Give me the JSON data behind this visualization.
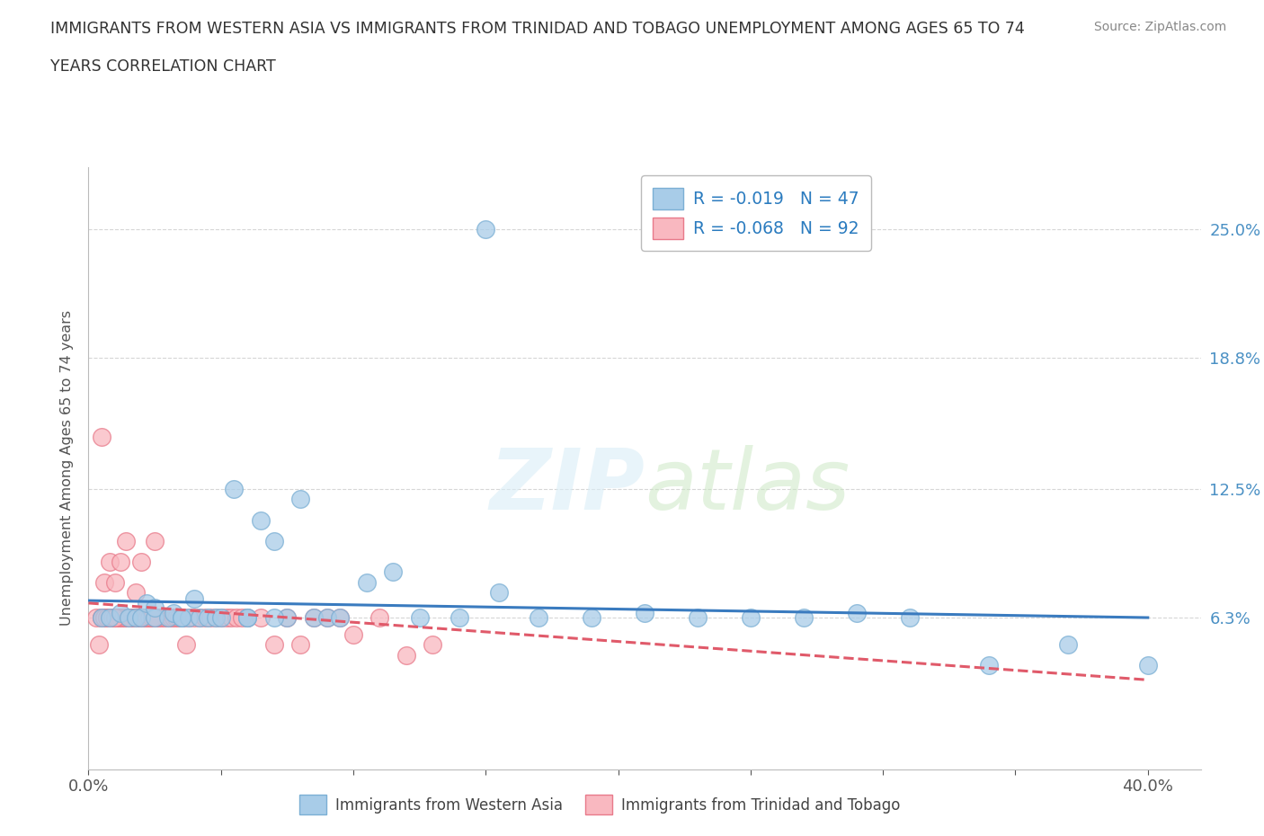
{
  "title_line1": "IMMIGRANTS FROM WESTERN ASIA VS IMMIGRANTS FROM TRINIDAD AND TOBAGO UNEMPLOYMENT AMONG AGES 65 TO 74",
  "title_line2": "YEARS CORRELATION CHART",
  "source": "Source: ZipAtlas.com",
  "ylabel": "Unemployment Among Ages 65 to 74 years",
  "xlim": [
    0.0,
    0.42
  ],
  "ylim": [
    -0.01,
    0.28
  ],
  "ytick_positions": [
    0.063,
    0.125,
    0.188,
    0.25
  ],
  "ytick_labels": [
    "6.3%",
    "12.5%",
    "18.8%",
    "25.0%"
  ],
  "grid_color": "#cccccc",
  "background_color": "#ffffff",
  "watermark_text": "ZIPatlas",
  "legend_r1": "R = -0.019",
  "legend_n1": "N = 47",
  "legend_r2": "R = -0.068",
  "legend_n2": "N = 92",
  "series1_color": "#a8cce8",
  "series1_edge": "#7bafd4",
  "series2_color": "#f9b8c0",
  "series2_edge": "#e87a8a",
  "trendline1_color": "#3a7bbf",
  "trendline2_color": "#e05a6a",
  "trendline1_style": "-",
  "trendline2_style": "--",
  "legend_label1": "Immigrants from Western Asia",
  "legend_label2": "Immigrants from Trinidad and Tobago",
  "wa_x": [
    0.005,
    0.008,
    0.012,
    0.015,
    0.018,
    0.02,
    0.022,
    0.025,
    0.025,
    0.03,
    0.032,
    0.035,
    0.038,
    0.04,
    0.042,
    0.045,
    0.048,
    0.05,
    0.055,
    0.06,
    0.065,
    0.07,
    0.075,
    0.08,
    0.085,
    0.09,
    0.095,
    0.105,
    0.115,
    0.125,
    0.14,
    0.155,
    0.17,
    0.19,
    0.21,
    0.23,
    0.25,
    0.27,
    0.29,
    0.31,
    0.34,
    0.37,
    0.4,
    0.15,
    0.07,
    0.06,
    0.035
  ],
  "wa_y": [
    0.063,
    0.063,
    0.065,
    0.063,
    0.063,
    0.063,
    0.07,
    0.063,
    0.068,
    0.063,
    0.065,
    0.063,
    0.063,
    0.072,
    0.063,
    0.063,
    0.063,
    0.063,
    0.125,
    0.063,
    0.11,
    0.1,
    0.063,
    0.12,
    0.063,
    0.063,
    0.063,
    0.08,
    0.085,
    0.063,
    0.063,
    0.075,
    0.063,
    0.063,
    0.065,
    0.063,
    0.063,
    0.063,
    0.065,
    0.063,
    0.04,
    0.05,
    0.04,
    0.25,
    0.063,
    0.063,
    0.063
  ],
  "tt_x": [
    0.003,
    0.004,
    0.005,
    0.005,
    0.006,
    0.006,
    0.007,
    0.007,
    0.008,
    0.008,
    0.009,
    0.01,
    0.01,
    0.011,
    0.012,
    0.012,
    0.013,
    0.014,
    0.014,
    0.015,
    0.015,
    0.016,
    0.017,
    0.018,
    0.018,
    0.019,
    0.02,
    0.02,
    0.021,
    0.022,
    0.023,
    0.024,
    0.025,
    0.025,
    0.026,
    0.027,
    0.028,
    0.029,
    0.03,
    0.031,
    0.032,
    0.033,
    0.034,
    0.035,
    0.036,
    0.037,
    0.038,
    0.04,
    0.042,
    0.044,
    0.046,
    0.048,
    0.05,
    0.052,
    0.054,
    0.056,
    0.058,
    0.06,
    0.065,
    0.07,
    0.075,
    0.08,
    0.085,
    0.09,
    0.095,
    0.1,
    0.11,
    0.12,
    0.13,
    0.005,
    0.006,
    0.007,
    0.008,
    0.009,
    0.01,
    0.011,
    0.012,
    0.013,
    0.014,
    0.015,
    0.016,
    0.017,
    0.018,
    0.019,
    0.02,
    0.021,
    0.022,
    0.023,
    0.024,
    0.025,
    0.01,
    0.015
  ],
  "tt_y": [
    0.063,
    0.05,
    0.063,
    0.063,
    0.063,
    0.08,
    0.063,
    0.063,
    0.063,
    0.09,
    0.063,
    0.063,
    0.08,
    0.063,
    0.063,
    0.09,
    0.063,
    0.063,
    0.1,
    0.063,
    0.063,
    0.063,
    0.063,
    0.063,
    0.075,
    0.063,
    0.063,
    0.09,
    0.063,
    0.063,
    0.063,
    0.063,
    0.063,
    0.1,
    0.063,
    0.063,
    0.063,
    0.063,
    0.063,
    0.063,
    0.063,
    0.063,
    0.063,
    0.063,
    0.063,
    0.05,
    0.063,
    0.063,
    0.063,
    0.063,
    0.063,
    0.063,
    0.063,
    0.063,
    0.063,
    0.063,
    0.063,
    0.063,
    0.063,
    0.05,
    0.063,
    0.05,
    0.063,
    0.063,
    0.063,
    0.055,
    0.063,
    0.045,
    0.05,
    0.15,
    0.063,
    0.063,
    0.063,
    0.063,
    0.063,
    0.063,
    0.063,
    0.063,
    0.063,
    0.063,
    0.063,
    0.063,
    0.063,
    0.063,
    0.063,
    0.063,
    0.063,
    0.063,
    0.063,
    0.063,
    0.063,
    0.063
  ],
  "trendline1_x0": 0.0,
  "trendline1_x1": 0.4,
  "trendline1_y0": 0.0712,
  "trendline1_y1": 0.063,
  "trendline2_x0": 0.0,
  "trendline2_x1": 0.4,
  "trendline2_y0": 0.07,
  "trendline2_y1": 0.033
}
